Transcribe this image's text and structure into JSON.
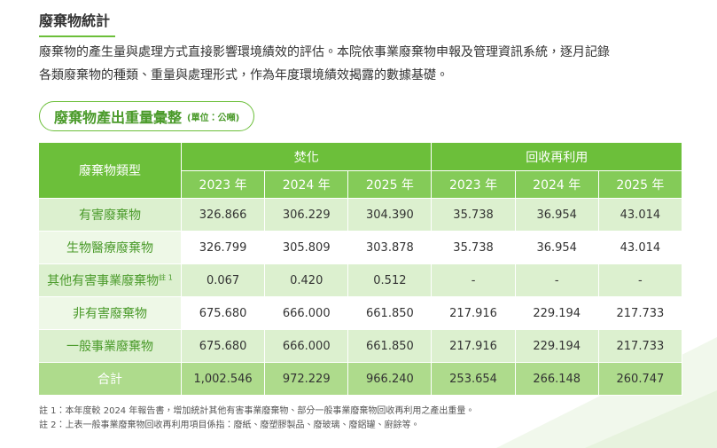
{
  "header": {
    "title": "廢棄物統計"
  },
  "intro": [
    "廢棄物的產生量與處理方式直接影響環境績效的評估。本院依事業廢棄物申報及管理資訊系統，逐月記錄",
    "各類廢棄物的種類、重量與處理形式，作為年度環境績效揭露的數據基礎。"
  ],
  "table": {
    "title": "廢棄物產出重量彙整",
    "unit": "(單位：公噸)",
    "corner": "廢棄物類型",
    "groups": [
      "焚化",
      "回收再利用"
    ],
    "years": [
      "2023 年",
      "2024 年",
      "2025 年",
      "2023 年",
      "2024 年",
      "2025 年"
    ],
    "rows": [
      {
        "label": "有害廢棄物",
        "cells": [
          "326.866",
          "306.229",
          "304.390",
          "35.738",
          "36.954",
          "43.014"
        ]
      },
      {
        "label": "生物醫療廢棄物",
        "cells": [
          "326.799",
          "305.809",
          "303.878",
          "35.738",
          "36.954",
          "43.014"
        ]
      },
      {
        "label": "其他有害事業廢棄物",
        "note": "註 1",
        "cells": [
          "0.067",
          "0.420",
          "0.512",
          "-",
          "-",
          "-"
        ]
      },
      {
        "label": "非有害廢棄物",
        "cells": [
          "675.680",
          "666.000",
          "661.850",
          "217.916",
          "229.194",
          "217.733"
        ]
      },
      {
        "label": "一般事業廢棄物",
        "cells": [
          "675.680",
          "666.000",
          "661.850",
          "217.916",
          "229.194",
          "217.733"
        ]
      },
      {
        "label": "合計",
        "cells": [
          "1,002.546",
          "972.229",
          "966.240",
          "253.654",
          "266.148",
          "260.747"
        ]
      }
    ]
  },
  "notes": [
    "註 1：本年度較 2024 年報告書，增加統計其他有害事業廢棄物、部分一般事業廢棄物回收再利用之產出重量。",
    "註 2：上表一般事業廢棄物回收再利用項目係指：廢紙、廢塑膠製品、廢玻璃、廢鋁罐、廚餘等。"
  ]
}
